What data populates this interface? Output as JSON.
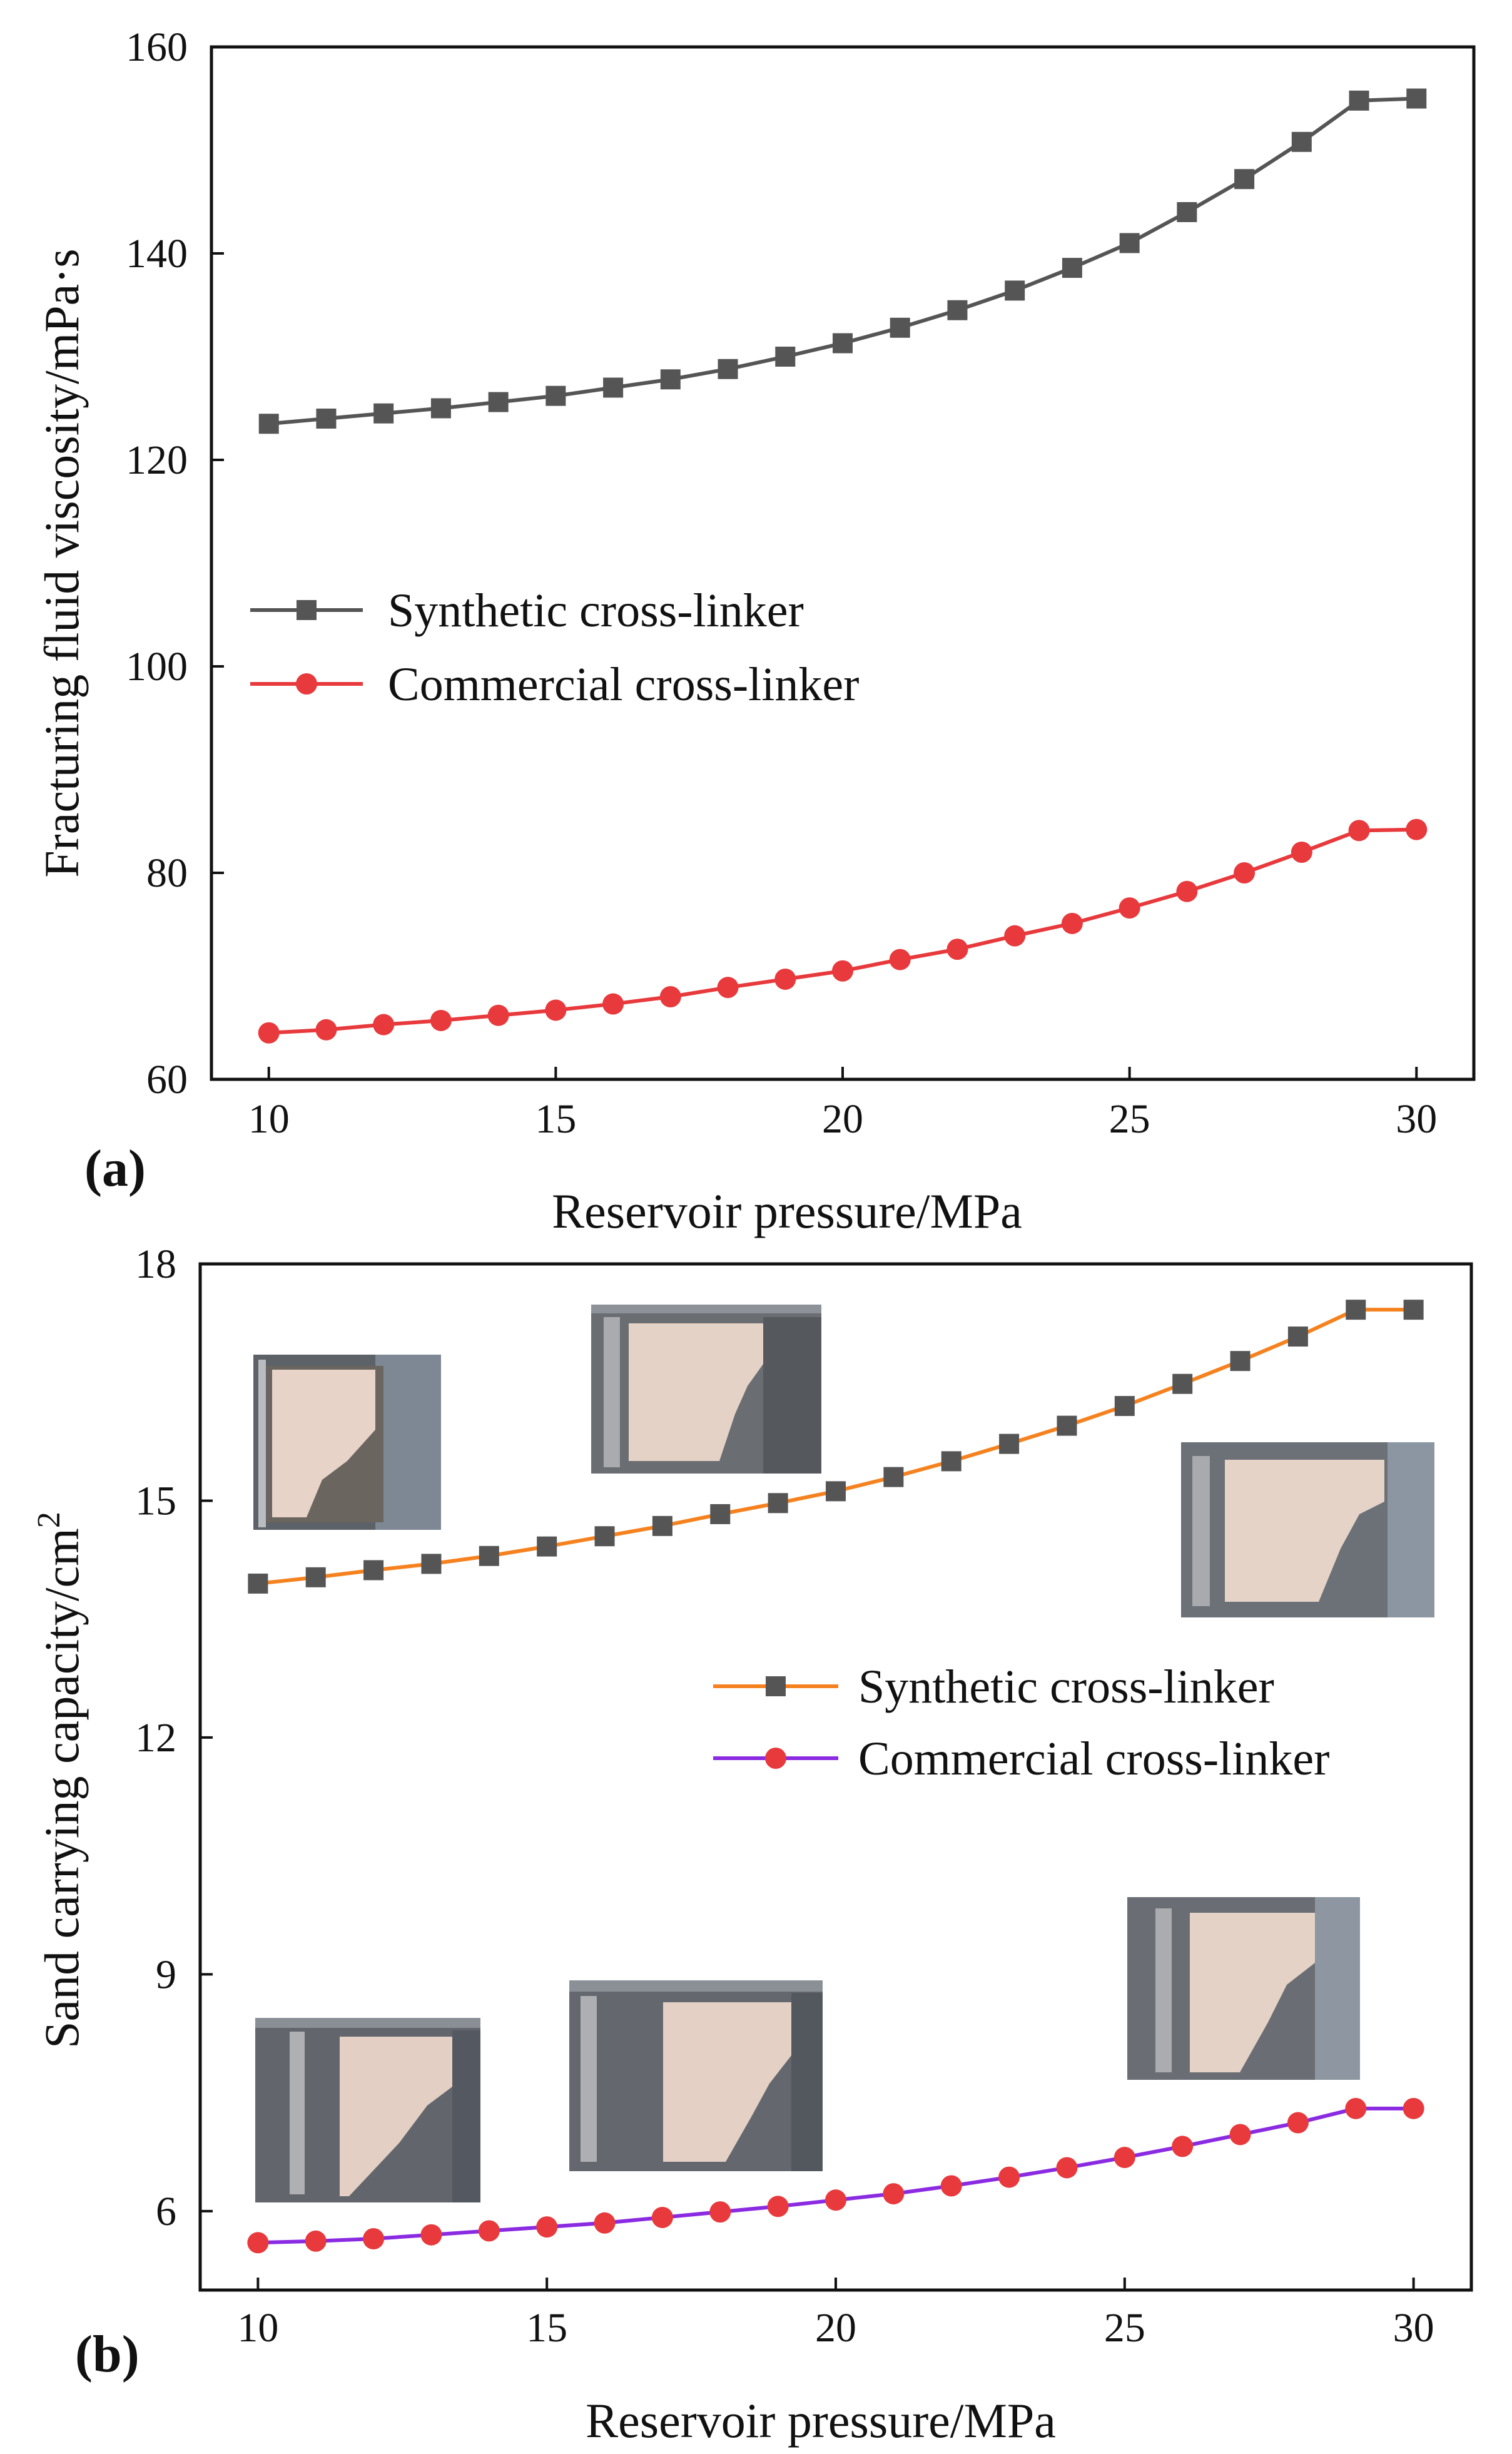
{
  "chart_data": [
    {
      "panel": "(a)",
      "type": "line",
      "title": "",
      "xlabel": "Reservoir pressure/MPa",
      "ylabel": "Fracturing fluid viscosity/mPa·s",
      "xlim": [
        9,
        31
      ],
      "ylim": [
        60,
        160
      ],
      "xticks": [
        10,
        15,
        20,
        25,
        30
      ],
      "yticks": [
        60,
        80,
        100,
        120,
        140,
        160
      ],
      "grid": false,
      "legend": "center-left",
      "x": [
        10,
        11,
        12,
        13,
        14,
        15,
        16,
        17,
        18,
        19,
        20,
        21,
        22,
        23,
        24,
        25,
        26,
        27,
        28,
        29,
        30
      ],
      "series": [
        {
          "name": "Synthetic cross-linker",
          "color": "#555555",
          "marker": "square",
          "values": [
            123.5,
            124.0,
            124.5,
            125.0,
            125.6,
            126.2,
            127.0,
            127.8,
            128.8,
            130.0,
            131.3,
            132.8,
            134.5,
            136.4,
            138.6,
            141.0,
            144.0,
            147.2,
            150.8,
            154.8,
            155.0
          ]
        },
        {
          "name": "Commercial cross-linker",
          "color": "#e8393c",
          "marker": "circle",
          "values": [
            64.5,
            64.8,
            65.3,
            65.7,
            66.2,
            66.7,
            67.3,
            68.0,
            68.9,
            69.7,
            70.5,
            71.6,
            72.6,
            73.9,
            75.1,
            76.6,
            78.2,
            80.0,
            82.0,
            84.1,
            84.2
          ]
        }
      ]
    },
    {
      "panel": "(b)",
      "type": "line",
      "title": "",
      "xlabel": "Reservoir pressure/MPa",
      "ylabel": "Sand carrying capacity/cm",
      "ylabel_superscript": "2",
      "xlim": [
        9,
        31
      ],
      "ylim": [
        5,
        18
      ],
      "xticks": [
        10,
        15,
        20,
        25,
        30
      ],
      "yticks": [
        6,
        9,
        12,
        15,
        18
      ],
      "grid": false,
      "legend": "center-right",
      "x": [
        10,
        11,
        12,
        13,
        14,
        15,
        16,
        17,
        18,
        19,
        20,
        21,
        22,
        23,
        24,
        25,
        26,
        27,
        28,
        29,
        30
      ],
      "series": [
        {
          "name": "Synthetic cross-linker",
          "color": "#f5821f",
          "marker_color": "#555555",
          "marker": "square",
          "values": [
            13.95,
            14.03,
            14.12,
            14.2,
            14.3,
            14.42,
            14.55,
            14.68,
            14.83,
            14.97,
            15.12,
            15.3,
            15.5,
            15.72,
            15.95,
            16.2,
            16.48,
            16.77,
            17.08,
            17.42,
            17.42
          ]
        },
        {
          "name": "Commercial cross-linker",
          "color": "#8a2be2",
          "marker_color": "#e8393c",
          "marker": "circle",
          "values": [
            5.6,
            5.62,
            5.65,
            5.7,
            5.75,
            5.8,
            5.85,
            5.92,
            5.99,
            6.06,
            6.14,
            6.22,
            6.32,
            6.43,
            6.55,
            6.68,
            6.82,
            6.97,
            7.12,
            7.3,
            7.3
          ]
        }
      ]
    }
  ]
}
